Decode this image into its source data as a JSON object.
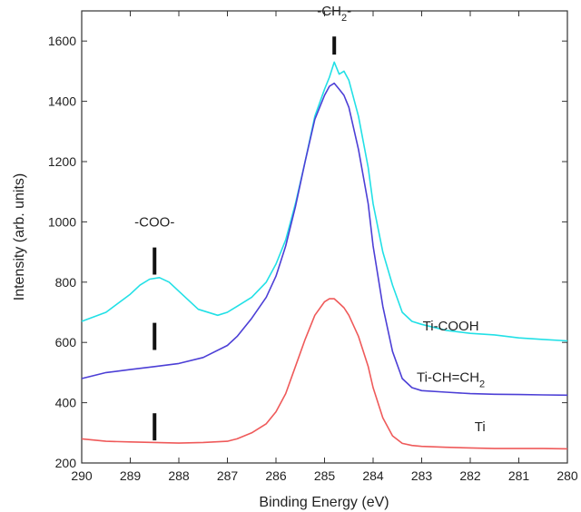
{
  "chart_data": {
    "type": "line",
    "title": "",
    "xlabel": "Binding Energy (eV)",
    "ylabel": "Intensity (arb. units)",
    "xlim": [
      290,
      280
    ],
    "ylim": [
      200,
      1700
    ],
    "x_reversed": true,
    "x_ticks": [
      290,
      289,
      288,
      287,
      286,
      285,
      284,
      283,
      282,
      281,
      280
    ],
    "y_ticks": [
      200,
      400,
      600,
      800,
      1000,
      1200,
      1400,
      1600
    ],
    "grid": false,
    "series": [
      {
        "name": "Ti-COOH",
        "color": "#22e0e6",
        "x": [
          290,
          289.5,
          289,
          288.8,
          288.6,
          288.4,
          288.2,
          288,
          287.6,
          287.2,
          287,
          286.8,
          286.5,
          286.2,
          286,
          285.8,
          285.6,
          285.4,
          285.2,
          285,
          284.9,
          284.8,
          284.7,
          284.6,
          284.5,
          284.3,
          284.1,
          284,
          283.8,
          283.6,
          283.4,
          283.2,
          283,
          282.5,
          282,
          281.5,
          281,
          280.5,
          280
        ],
        "y": [
          670,
          700,
          760,
          790,
          810,
          815,
          800,
          770,
          710,
          690,
          700,
          720,
          750,
          800,
          860,
          940,
          1060,
          1200,
          1350,
          1440,
          1480,
          1530,
          1490,
          1500,
          1470,
          1350,
          1180,
          1060,
          900,
          790,
          700,
          670,
          660,
          640,
          630,
          625,
          615,
          610,
          605
        ]
      },
      {
        "name": "Ti-CH=CH2",
        "color": "#4c3fd6",
        "x": [
          290,
          289.5,
          289,
          288.5,
          288,
          287.5,
          287,
          286.8,
          286.5,
          286.2,
          286,
          285.8,
          285.6,
          285.4,
          285.2,
          285,
          284.9,
          284.8,
          284.7,
          284.6,
          284.5,
          284.3,
          284.1,
          284,
          283.8,
          283.6,
          283.4,
          283.2,
          283,
          282.5,
          282,
          281.5,
          281,
          280.5,
          280
        ],
        "y": [
          480,
          500,
          510,
          520,
          530,
          550,
          590,
          620,
          680,
          750,
          820,
          920,
          1050,
          1200,
          1340,
          1420,
          1450,
          1460,
          1440,
          1420,
          1380,
          1240,
          1060,
          920,
          720,
          570,
          480,
          450,
          440,
          435,
          430,
          428,
          427,
          426,
          425
        ]
      },
      {
        "name": "Ti",
        "color": "#ef5a5a",
        "x": [
          290,
          289.5,
          289,
          288.5,
          288,
          287.5,
          287,
          286.8,
          286.5,
          286.2,
          286,
          285.8,
          285.6,
          285.4,
          285.2,
          285,
          284.9,
          284.8,
          284.7,
          284.6,
          284.5,
          284.3,
          284.1,
          284,
          283.8,
          283.6,
          283.4,
          283.2,
          283,
          282.5,
          282,
          281.5,
          281,
          280.5,
          280
        ],
        "y": [
          280,
          272,
          270,
          268,
          266,
          268,
          272,
          280,
          300,
          330,
          370,
          430,
          520,
          610,
          690,
          735,
          745,
          745,
          730,
          715,
          690,
          620,
          520,
          450,
          350,
          290,
          265,
          258,
          255,
          252,
          250,
          248,
          248,
          248,
          247
        ]
      }
    ],
    "labels": [
      {
        "text": "Ti-COOH",
        "x": 282.4,
        "y": 640
      },
      {
        "text": "Ti-CH=CH",
        "sub": "2",
        "x": 282.4,
        "y": 470
      },
      {
        "text": "Ti",
        "x": 281.8,
        "y": 305
      }
    ],
    "annotations": [
      {
        "text": "-COO-",
        "x": 288.5,
        "y": 985,
        "marker": [
          825,
          915
        ]
      },
      {
        "text": "-CH",
        "sub": "2",
        "tail": "-",
        "x": 284.8,
        "y": 1685,
        "marker": [
          1555,
          1615
        ]
      }
    ],
    "markers_only": [
      {
        "x": 288.5,
        "y": [
          575,
          665
        ]
      },
      {
        "x": 288.5,
        "y": [
          275,
          365
        ]
      }
    ]
  }
}
